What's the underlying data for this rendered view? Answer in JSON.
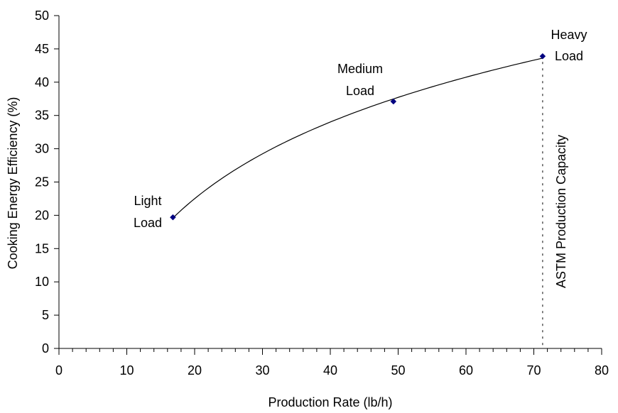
{
  "chart_data": {
    "type": "scatter",
    "xlabel": "Production Rate (lb/h)",
    "ylabel": "Cooking Energy Efficiency (%)",
    "xlim": [
      0,
      80
    ],
    "ylim": [
      0,
      50
    ],
    "x_major_ticks": [
      0,
      10,
      20,
      30,
      40,
      50,
      60,
      70,
      80
    ],
    "x_tick_labels": [
      "0",
      "10",
      "20",
      "30",
      "40",
      "50",
      "60",
      "70",
      "80"
    ],
    "x_minor_step": 2,
    "y_major_ticks": [
      0,
      5,
      10,
      15,
      20,
      25,
      30,
      35,
      40,
      45,
      50
    ],
    "y_tick_labels": [
      "0",
      "5",
      "10",
      "15",
      "20",
      "25",
      "30",
      "35",
      "40",
      "45",
      "50"
    ],
    "grid": false,
    "legend": "none",
    "points": [
      {
        "x": 16.8,
        "y": 19.7,
        "label": [
          "Light",
          "Load"
        ]
      },
      {
        "x": 49.3,
        "y": 37.1,
        "label": [
          "Medium",
          "Load"
        ]
      },
      {
        "x": 71.3,
        "y": 43.9,
        "label": [
          "Heavy",
          "Load"
        ]
      }
    ],
    "trendline": "logarithmic",
    "reference_line": {
      "x": 71.3,
      "style": "dashed",
      "label": "ASTM Production Capacity"
    },
    "colors": {
      "marker": "#000080",
      "line": "#000000",
      "axis": "#000000"
    }
  }
}
